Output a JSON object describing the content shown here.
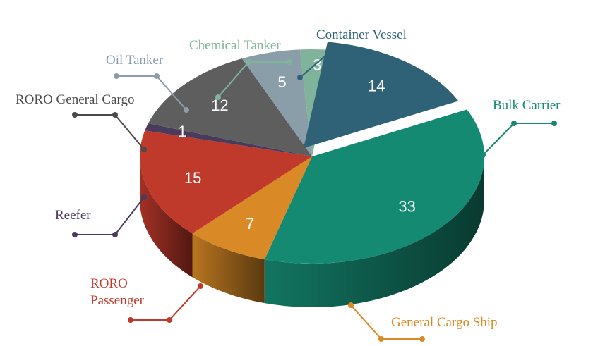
{
  "chart_data": {
    "type": "pie",
    "style": "3d-exploded",
    "legend": "none",
    "slices": [
      {
        "label": "Bulk Carrier",
        "value": 33,
        "color": "#158a72"
      },
      {
        "label": "General Cargo Ship",
        "value": 7,
        "color": "#d98a26"
      },
      {
        "label": "RORO Passenger",
        "value": 15,
        "color": "#c03a2b"
      },
      {
        "label": "Reefer",
        "value": 1,
        "color": "#4a3a5c"
      },
      {
        "label": "RORO General Cargo",
        "value": 12,
        "color": "#5e5e5e"
      },
      {
        "label": "Oil Tanker",
        "value": 5,
        "color": "#8a9eaa"
      },
      {
        "label": "Chemical Tanker",
        "value": 3,
        "color": "#7fb39a"
      },
      {
        "label": "Container Vessel",
        "value": 14,
        "color": "#2f6276"
      }
    ]
  }
}
